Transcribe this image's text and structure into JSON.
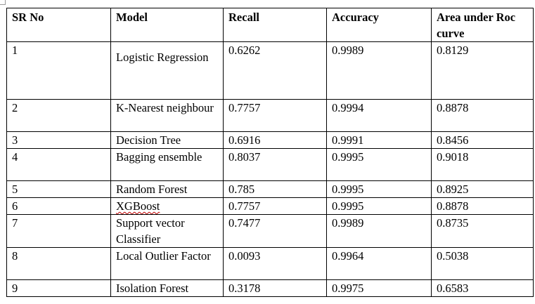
{
  "table": {
    "headers": [
      "SR No",
      "Model",
      "Recall",
      "Accuracy",
      "Area under Roc curve"
    ],
    "rows": [
      {
        "sr": "1",
        "model": "Logistic Regression",
        "recall": "0.6262",
        "accuracy": "0.9989",
        "auc": "0.8129"
      },
      {
        "sr": "2",
        "model": "K-Nearest neighbour",
        "recall": "0.7757",
        "accuracy": "0.9994",
        "auc": "0.8878"
      },
      {
        "sr": "3",
        "model": "Decision Tree",
        "recall": "0.6916",
        "accuracy": "0.9991",
        "auc": "0.8456"
      },
      {
        "sr": "4",
        "model": "Bagging ensemble",
        "recall": "0.8037",
        "accuracy": "0.9995",
        "auc": "0.9018"
      },
      {
        "sr": "5",
        "model": "Random Forest",
        "recall": "0.785",
        "accuracy": "0.9995",
        "auc": "0.8925"
      },
      {
        "sr": "6",
        "model": "XGBoost",
        "recall": "0.7757",
        "accuracy": "0.9995",
        "auc": "0.8878"
      },
      {
        "sr": "7",
        "model": "Support vector Classifier",
        "recall": "0.7477",
        "accuracy": "0.9989",
        "auc": "0.8735"
      },
      {
        "sr": "8",
        "model": "Local Outlier Factor",
        "recall": "0.0093",
        "accuracy": "0.9964",
        "auc": "0.5038"
      },
      {
        "sr": "9",
        "model": "Isolation Forest",
        "recall": "0.3178",
        "accuracy": "0.9975",
        "auc": "0.6583"
      }
    ]
  }
}
